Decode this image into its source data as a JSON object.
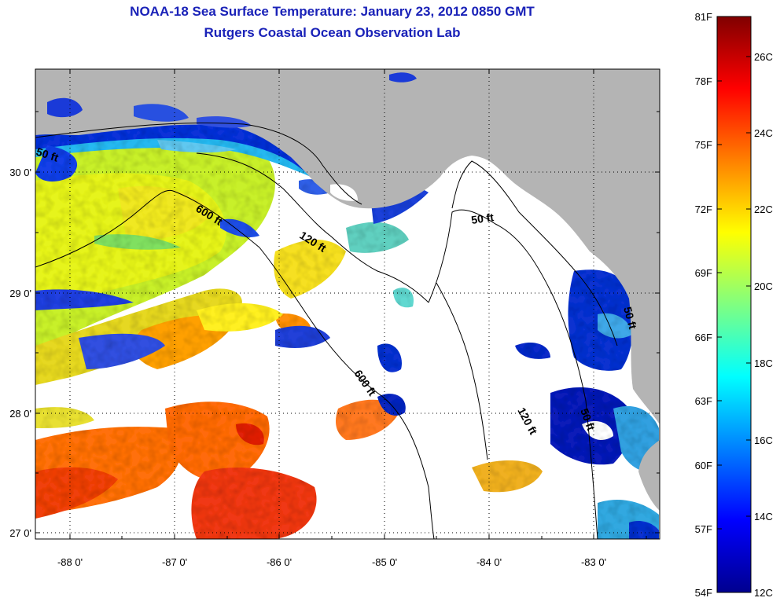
{
  "title": {
    "line1": "NOAA-18 Sea Surface Temperature:  January 23, 2012 0850 GMT",
    "line2": "Rutgers Coastal Ocean Observation Lab"
  },
  "map": {
    "region": "Eastern Gulf of Mexico / Florida Big Bend",
    "lon_range": [
      -88.35,
      -82.35
    ],
    "lat_range": [
      26.95,
      30.85
    ],
    "lon_ticks": [
      {
        "value": -88,
        "label": "-88 0'"
      },
      {
        "value": -87,
        "label": "-87 0'"
      },
      {
        "value": -86,
        "label": "-86 0'"
      },
      {
        "value": -85,
        "label": "-85 0'"
      },
      {
        "value": -84,
        "label": "-84 0'"
      },
      {
        "value": -83,
        "label": "-83 0'"
      }
    ],
    "lat_ticks": [
      {
        "value": 30,
        "label": "30 0'"
      },
      {
        "value": 29,
        "label": "29 0'"
      },
      {
        "value": 28,
        "label": "28 0'"
      },
      {
        "value": 27,
        "label": "27 0'"
      }
    ],
    "grid": "dotted",
    "land_color": "#b4b4b4",
    "cloud_mask_color": "#ffffff",
    "contour_labels": [
      {
        "text": "50 ft"
      },
      {
        "text": "600 ft"
      },
      {
        "text": "120 ft"
      },
      {
        "text": "50 ft"
      },
      {
        "text": "600 ft"
      },
      {
        "text": "120 ft"
      },
      {
        "text": "50 ft"
      },
      {
        "text": "50 ft"
      }
    ]
  },
  "colorbar": {
    "colormap": "jet",
    "range_c": [
      12,
      27.2
    ],
    "f_ticks": [
      "81F",
      "78F",
      "75F",
      "72F",
      "69F",
      "66F",
      "63F",
      "60F",
      "57F",
      "54F"
    ],
    "c_ticks": [
      "26C",
      "24C",
      "22C",
      "20C",
      "18C",
      "16C",
      "14C",
      "12C"
    ],
    "colors": [
      "#00008f",
      "#0000ff",
      "#0080ff",
      "#00ffff",
      "#80ff80",
      "#ffff00",
      "#ff8000",
      "#ff0000",
      "#800000"
    ]
  }
}
